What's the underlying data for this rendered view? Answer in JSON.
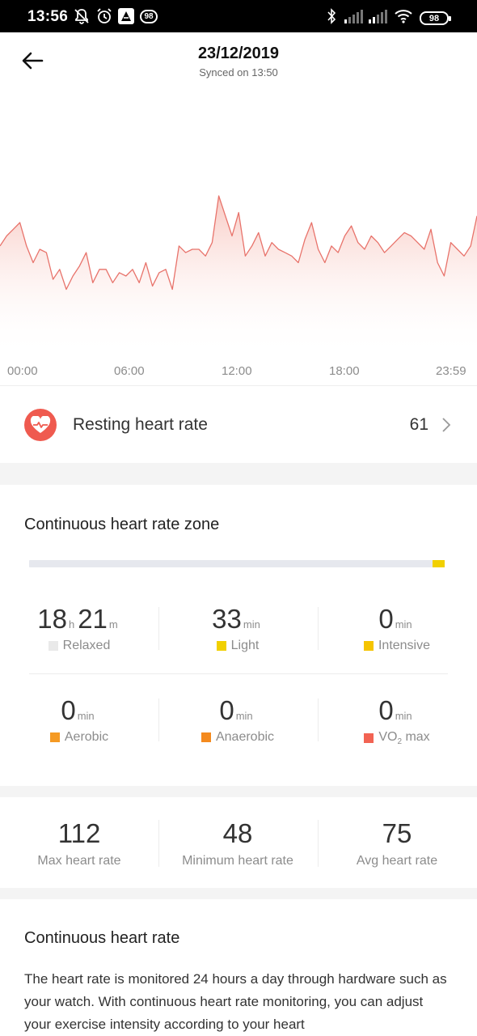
{
  "status_bar": {
    "time": "13:56",
    "notification_badge": "98",
    "battery": "98",
    "icons": [
      "bell-off-icon",
      "alarm-icon",
      "app-icon",
      "badge-icon",
      "bluetooth-icon",
      "signal-icon",
      "signal-icon",
      "wifi-icon",
      "battery-icon"
    ]
  },
  "header": {
    "date": "23/12/2019",
    "synced": "Synced on 13:50",
    "back_icon": "arrow-left-icon"
  },
  "chart_data": {
    "type": "area",
    "x_ticks": [
      "00:00",
      "06:00",
      "12:00",
      "18:00",
      "23:59"
    ],
    "line_color": "#e8736b",
    "fill_color": "#fbd9d4",
    "x": [
      0,
      20,
      40,
      60,
      80,
      100,
      120,
      140,
      160,
      180,
      200,
      220,
      240,
      260,
      280,
      300,
      320,
      340,
      360,
      380,
      400,
      420,
      440,
      460,
      480,
      500,
      520,
      540,
      560,
      580,
      600,
      620,
      640,
      660,
      680,
      700,
      720,
      740,
      760,
      780,
      800,
      820,
      840,
      860,
      880,
      900,
      920,
      940,
      960,
      980,
      1000,
      1020,
      1040,
      1060,
      1080,
      1100,
      1120,
      1140,
      1160,
      1180,
      1200,
      1220,
      1240,
      1260,
      1280,
      1300,
      1320,
      1340,
      1360,
      1380,
      1400,
      1420,
      1439
    ],
    "y": [
      73,
      76,
      78,
      80,
      73,
      68,
      72,
      71,
      63,
      66,
      60,
      64,
      67,
      71,
      62,
      66,
      66,
      62,
      65,
      64,
      66,
      62,
      68,
      61,
      65,
      66,
      60,
      73,
      71,
      72,
      72,
      70,
      74,
      88,
      82,
      76,
      83,
      70,
      73,
      77,
      70,
      74,
      72,
      71,
      70,
      68,
      75,
      80,
      72,
      68,
      73,
      71,
      76,
      79,
      74,
      72,
      76,
      74,
      71,
      73,
      75,
      77,
      76,
      74,
      72,
      78,
      68,
      64,
      74,
      72,
      70,
      73,
      82
    ],
    "max": 112,
    "min": 48,
    "avg": 75
  },
  "resting": {
    "label": "Resting heart rate",
    "value": "61",
    "icon": "heart-pulse-icon"
  },
  "zone": {
    "title": "Continuous heart rate zone",
    "fill_fraction": 0.03,
    "fill_color": "#f1d000",
    "stats": [
      {
        "value_h": "18",
        "unit_h": "h",
        "value_m": "21",
        "unit_m": "m",
        "label": "Relaxed",
        "color": "#e9e9e9"
      },
      {
        "value": "33",
        "unit": "min",
        "label": "Light",
        "color": "#f1d000"
      },
      {
        "value": "0",
        "unit": "min",
        "label": "Intensive",
        "color": "#f5c400"
      },
      {
        "value": "0",
        "unit": "min",
        "label": "Aerobic",
        "color": "#f59a23"
      },
      {
        "value": "0",
        "unit": "min",
        "label": "Anaerobic",
        "color": "#f48a1e"
      },
      {
        "value": "0",
        "unit": "min",
        "label_main": "VO",
        "label_sub": "2",
        "label_tail": " max",
        "color": "#f26353"
      }
    ]
  },
  "summary": [
    {
      "value": "112",
      "label": "Max heart rate"
    },
    {
      "value": "48",
      "label": "Minimum heart rate"
    },
    {
      "value": "75",
      "label": "Avg heart rate"
    }
  ],
  "continuous": {
    "title": "Continuous heart rate",
    "description": "The heart rate is monitored 24 hours a day through hardware such as your watch. With continuous heart rate monitoring, you can adjust your exercise intensity according to your heart"
  }
}
